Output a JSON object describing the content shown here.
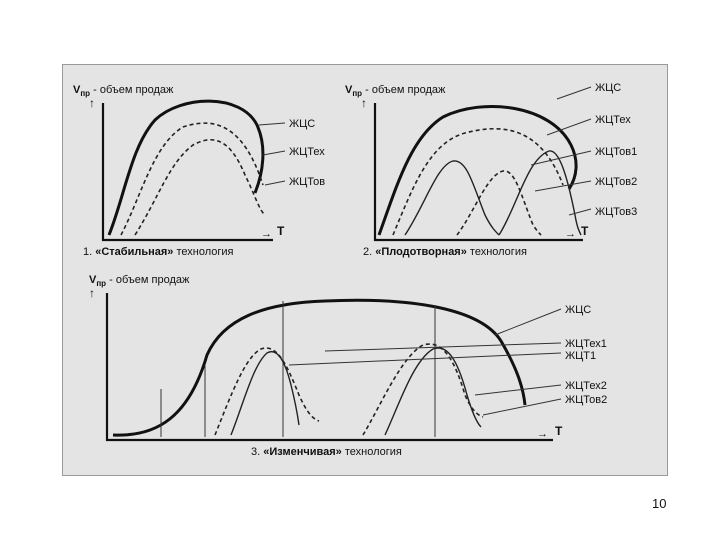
{
  "diagram1": {
    "axis_y": "V",
    "axis_y_sub": "пр",
    "axis_y_rest": " - объем продаж",
    "axis_x": "T",
    "caption_num": "1. ",
    "caption_bold": "«Стабильная»",
    "caption_rest": " технология",
    "labels": [
      "ЖЦС",
      "ЖЦТех",
      "ЖЦТов"
    ]
  },
  "diagram2": {
    "axis_y": "V",
    "axis_y_sub": "пр",
    "axis_y_rest": " - объем продаж",
    "axis_x": "T",
    "caption_num": "2. ",
    "caption_bold": "«Плодотворная»",
    "caption_rest": " технология",
    "labels": [
      "ЖЦС",
      "ЖЦТех",
      "ЖЦТов1",
      "ЖЦТов2",
      "ЖЦТов3"
    ]
  },
  "diagram3": {
    "axis_y": "V",
    "axis_y_sub": "пр",
    "axis_y_rest": " - объем продаж",
    "axis_x": "T",
    "caption_num": "3. ",
    "caption_bold": "«Изменчивая»",
    "caption_rest": " технология",
    "labels": [
      "ЖЦС",
      "ЖЦТех1",
      "ЖЦТ1",
      "ЖЦТех2",
      "ЖЦТов2"
    ]
  },
  "page_number": "10"
}
